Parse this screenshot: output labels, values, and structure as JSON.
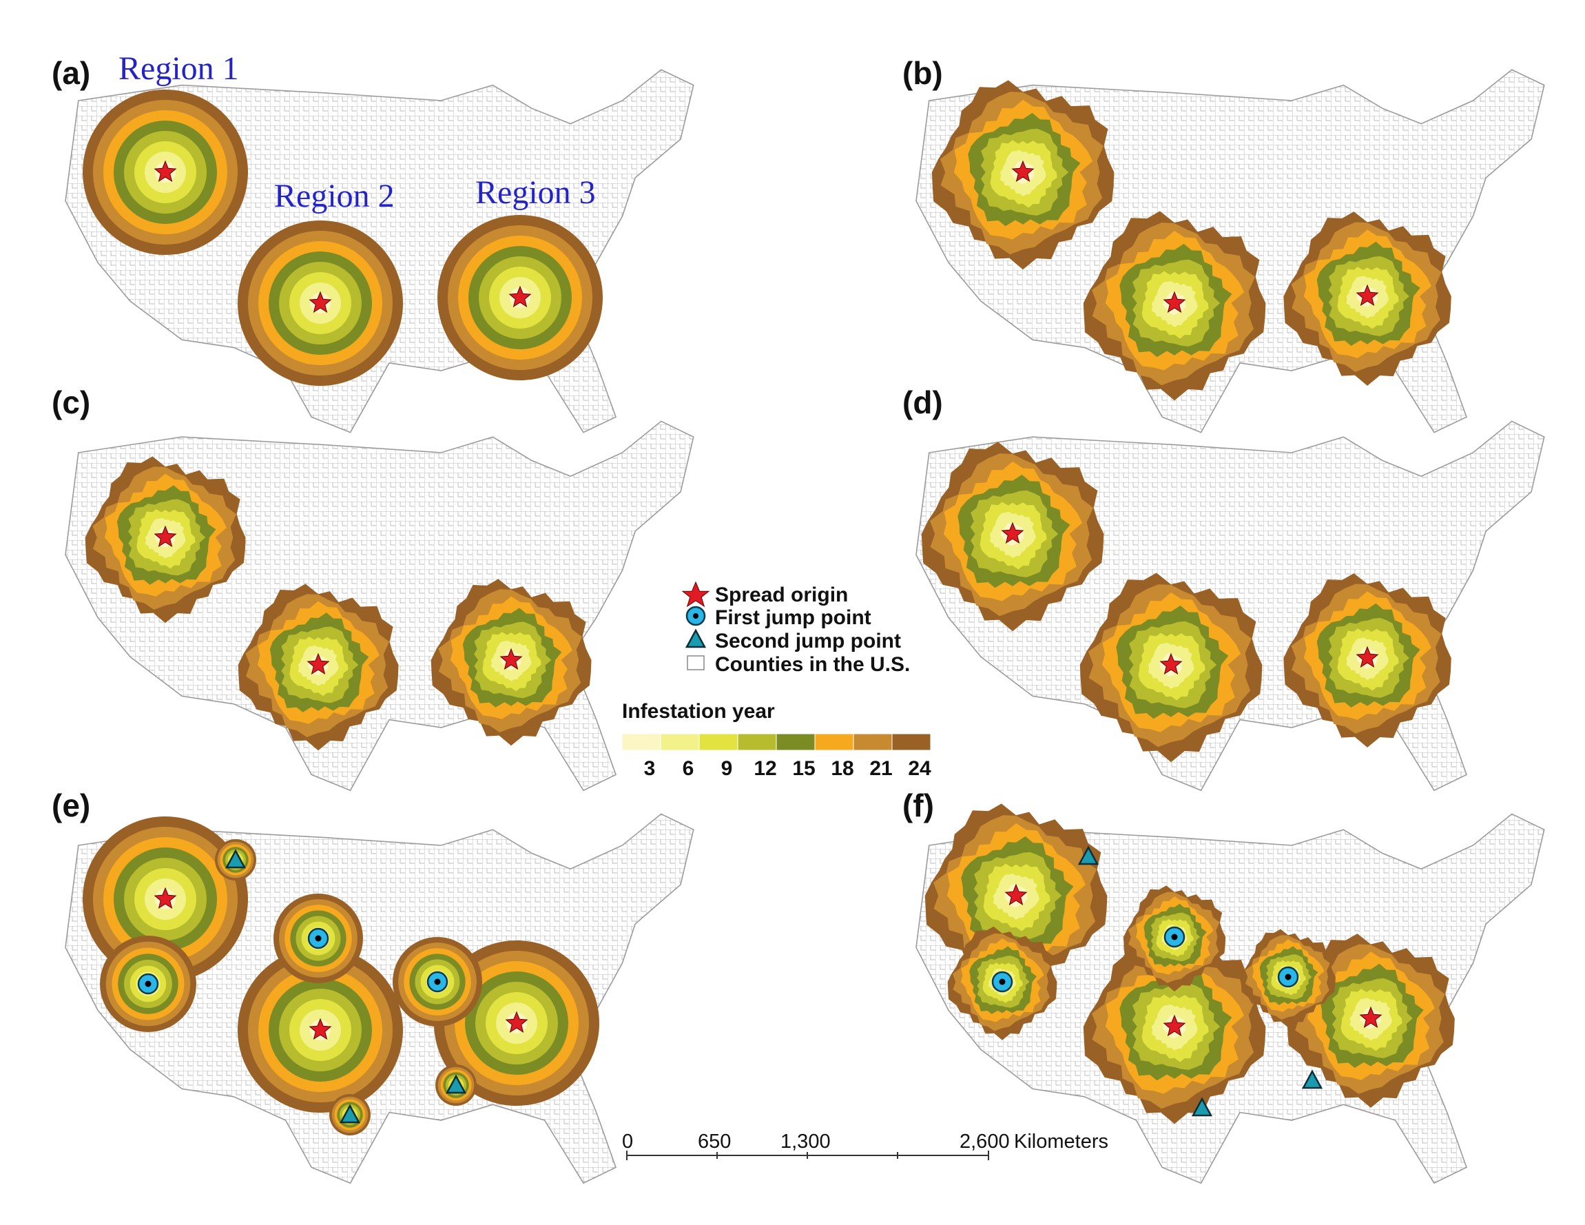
{
  "panels": [
    {
      "label": "(a)"
    },
    {
      "label": "(b)"
    },
    {
      "label": "(c)"
    },
    {
      "label": "(d)"
    },
    {
      "label": "(e)"
    },
    {
      "label": "(f)"
    }
  ],
  "regions": [
    "Region 1",
    "Region 2",
    "Region 3"
  ],
  "legend": {
    "items": [
      {
        "label": "Spread origin",
        "icon": "star-icon"
      },
      {
        "label": "First jump point",
        "icon": "circle-dot-icon"
      },
      {
        "label": "Second jump point",
        "icon": "triangle-icon"
      },
      {
        "label": "Counties in the U.S.",
        "icon": "county-outline-icon"
      }
    ],
    "colorbar_title": "Infestation year",
    "colorbar_ticks": [
      "3",
      "6",
      "9",
      "12",
      "15",
      "18",
      "21",
      "24"
    ],
    "colors": [
      "#fbf6c4",
      "#f3f18a",
      "#e2e341",
      "#b6bc2d",
      "#7c8c24",
      "#f6a81f",
      "#c88a31",
      "#9a6126"
    ]
  },
  "scale_bar": {
    "labels": [
      "0",
      "650",
      "1,300",
      "2,600"
    ],
    "unit": "Kilometers"
  },
  "colors": {
    "origin_star": "#e01b24",
    "first_jump": "#29b6e8",
    "second_jump": "#1a9bb0",
    "map_outline": "#8a8a8a",
    "region_label": "#2323c8"
  }
}
